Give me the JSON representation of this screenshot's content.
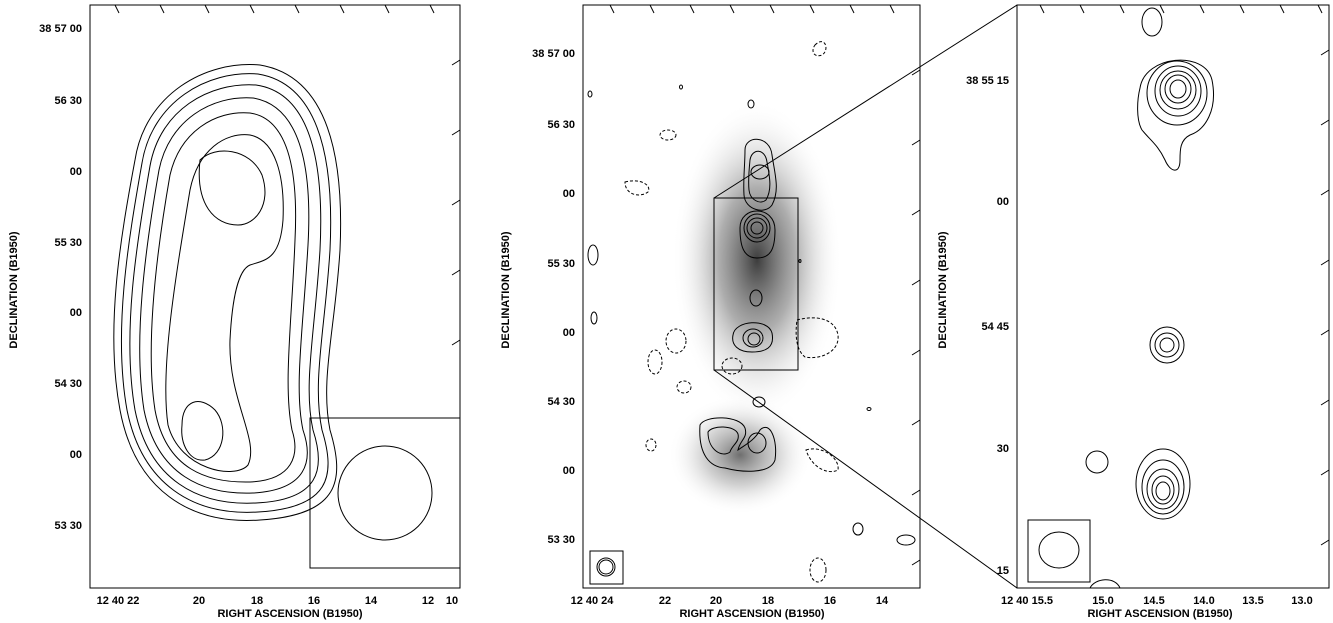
{
  "chart_data": [
    {
      "type": "contour",
      "xlabel": "RIGHT ASCENSION (B1950)",
      "ylabel": "DECLINATION (B1950)",
      "x_tick_labels": [
        "12 40 22",
        "20",
        "18",
        "16",
        "14",
        "12",
        "10"
      ],
      "y_tick_labels": [
        "38 57 00",
        "56 30",
        "00",
        "55 30",
        "00",
        "54 30",
        "00",
        "53 30"
      ],
      "beam_inset": true
    },
    {
      "type": "contour",
      "xlabel": "RIGHT ASCENSION (B1950)",
      "ylabel": "DECLINATION (B1950)",
      "x_tick_labels": [
        "12 40 24",
        "22",
        "20",
        "18",
        "16",
        "14"
      ],
      "y_tick_labels": [
        "38 57 00",
        "56 30",
        "00",
        "55 30",
        "00",
        "54 30",
        "00",
        "53 30"
      ],
      "greyscale_background": true,
      "negative_contours_dashed": true,
      "zoom_box": true,
      "beam_inset": true
    },
    {
      "type": "contour",
      "xlabel": "RIGHT ASCENSION (B1950)",
      "ylabel": "DECLINATION (B1950)",
      "x_tick_labels": [
        "12 40 15.5",
        "15.0",
        "14.5",
        "14.0",
        "13.5",
        "13.0"
      ],
      "y_tick_labels": [
        "38 55 15",
        "00",
        "54 45",
        "30",
        "15"
      ],
      "beam_inset": true
    }
  ]
}
